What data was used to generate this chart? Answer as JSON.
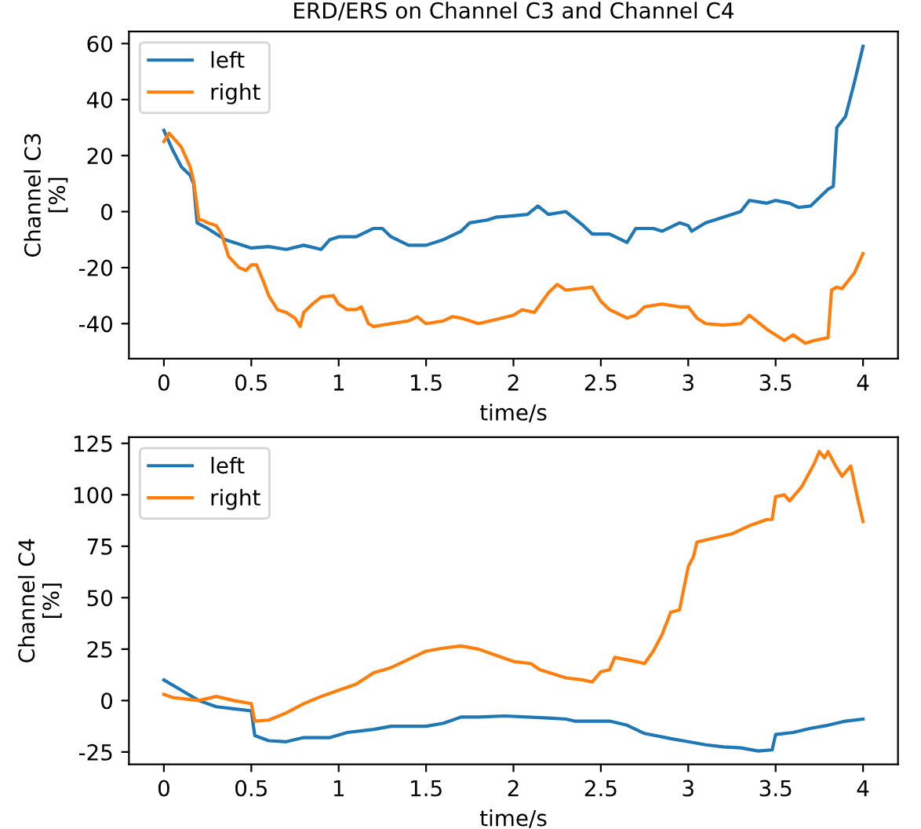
{
  "chart_data": [
    {
      "type": "line",
      "title": "ERD/ERS on Channel C3 and Channel C4",
      "xlabel": "time/s",
      "ylabel": "Channel C3\n[%]",
      "xlim": [
        -0.2,
        4.2
      ],
      "ylim": [
        -52.5,
        64.3
      ],
      "xticks": [
        0,
        0.5,
        1,
        1.5,
        2,
        2.5,
        3,
        3.5,
        4
      ],
      "yticks": [
        -40,
        -20,
        0,
        20,
        40,
        60
      ],
      "legend": "top left",
      "grid": false,
      "series": [
        {
          "name": "left",
          "color": "#1f77b4",
          "x": [
            0,
            0.05,
            0.1,
            0.15,
            0.17,
            0.19,
            0.25,
            0.35,
            0.5,
            0.6,
            0.7,
            0.8,
            0.9,
            0.95,
            1.0,
            1.1,
            1.2,
            1.25,
            1.3,
            1.4,
            1.5,
            1.6,
            1.7,
            1.75,
            1.85,
            1.9,
            2.0,
            2.08,
            2.14,
            2.2,
            2.3,
            2.4,
            2.45,
            2.55,
            2.65,
            2.7,
            2.8,
            2.85,
            2.95,
            3.0,
            3.02,
            3.1,
            3.2,
            3.3,
            3.35,
            3.45,
            3.5,
            3.58,
            3.63,
            3.7,
            3.75,
            3.8,
            3.83,
            3.85,
            3.9,
            3.95,
            4.0
          ],
          "values": [
            29,
            22,
            16,
            13,
            10,
            -4,
            -6,
            -10,
            -13,
            -12.5,
            -13.5,
            -12,
            -13.5,
            -10,
            -9,
            -9,
            -6,
            -6,
            -9,
            -12,
            -12,
            -10,
            -7,
            -4,
            -3,
            -2,
            -1.5,
            -1,
            2,
            -1,
            0,
            -5,
            -8,
            -8,
            -11,
            -6,
            -6,
            -7,
            -4,
            -5,
            -7,
            -4,
            -2,
            0,
            4,
            3,
            4,
            3,
            1.5,
            2,
            5,
            8,
            9,
            30,
            34,
            46,
            59
          ]
        },
        {
          "name": "right",
          "color": "#ff7f0e",
          "x": [
            0,
            0.03,
            0.1,
            0.15,
            0.17,
            0.2,
            0.22,
            0.25,
            0.3,
            0.33,
            0.37,
            0.43,
            0.47,
            0.5,
            0.53,
            0.57,
            0.6,
            0.65,
            0.7,
            0.75,
            0.78,
            0.8,
            0.85,
            0.9,
            0.97,
            1.0,
            1.05,
            1.1,
            1.13,
            1.17,
            1.2,
            1.3,
            1.4,
            1.45,
            1.5,
            1.6,
            1.65,
            1.7,
            1.8,
            1.9,
            2.0,
            2.05,
            2.12,
            2.2,
            2.25,
            2.3,
            2.45,
            2.5,
            2.55,
            2.65,
            2.7,
            2.75,
            2.85,
            2.95,
            3.0,
            3.05,
            3.1,
            3.2,
            3.3,
            3.35,
            3.45,
            3.55,
            3.6,
            3.67,
            3.72,
            3.8,
            3.82,
            3.85,
            3.88,
            3.95,
            4.0
          ],
          "values": [
            25,
            28,
            23,
            16,
            11,
            -3,
            -3,
            -4,
            -5,
            -8,
            -16,
            -20,
            -21,
            -19,
            -19,
            -25,
            -30,
            -35,
            -36,
            -38,
            -41,
            -36,
            -33,
            -30.5,
            -30,
            -33,
            -35,
            -35,
            -34,
            -40,
            -41,
            -40,
            -39,
            -37.5,
            -40,
            -39,
            -37.5,
            -38,
            -40,
            -38.5,
            -37,
            -35,
            -36,
            -29,
            -26,
            -28,
            -27,
            -32,
            -35,
            -38,
            -37,
            -34,
            -33,
            -34,
            -34,
            -38,
            -40,
            -40.5,
            -40,
            -37,
            -42,
            -46,
            -44,
            -47,
            -46,
            -45,
            -28,
            -27,
            -27.5,
            -22,
            -15
          ]
        }
      ]
    },
    {
      "type": "line",
      "xlabel": "time/s",
      "ylabel": "Channel C4\n[%]",
      "xlim": [
        -0.2,
        4.2
      ],
      "ylim": [
        -31,
        128
      ],
      "xticks": [
        0,
        0.5,
        1,
        1.5,
        2,
        2.5,
        3,
        3.5,
        4
      ],
      "yticks": [
        -25,
        0,
        25,
        50,
        75,
        100,
        125
      ],
      "legend": "top left",
      "grid": false,
      "series": [
        {
          "name": "left",
          "color": "#1f77b4",
          "x": [
            0,
            0.1,
            0.2,
            0.3,
            0.4,
            0.5,
            0.52,
            0.6,
            0.7,
            0.8,
            0.95,
            1.05,
            1.2,
            1.3,
            1.5,
            1.6,
            1.7,
            1.8,
            1.95,
            2.2,
            2.3,
            2.35,
            2.55,
            2.65,
            2.75,
            2.9,
            3.0,
            3.1,
            3.2,
            3.3,
            3.4,
            3.48,
            3.5,
            3.6,
            3.7,
            3.8,
            3.9,
            4.0
          ],
          "values": [
            10,
            5,
            0,
            -3,
            -4,
            -5,
            -17,
            -19.5,
            -20,
            -18,
            -18,
            -15.5,
            -14,
            -12.5,
            -12.5,
            -11,
            -8,
            -8,
            -7.5,
            -8.5,
            -9,
            -10,
            -10,
            -12,
            -16,
            -18.5,
            -20,
            -21.5,
            -22.5,
            -23,
            -24.5,
            -24,
            -16.5,
            -15.5,
            -13.5,
            -12,
            -10,
            -9
          ]
        },
        {
          "name": "right",
          "color": "#ff7f0e",
          "x": [
            0,
            0.05,
            0.15,
            0.2,
            0.3,
            0.4,
            0.5,
            0.52,
            0.6,
            0.7,
            0.8,
            0.9,
            1.0,
            1.1,
            1.2,
            1.3,
            1.4,
            1.5,
            1.6,
            1.7,
            1.8,
            1.9,
            2.0,
            2.1,
            2.15,
            2.3,
            2.4,
            2.45,
            2.5,
            2.55,
            2.58,
            2.7,
            2.75,
            2.8,
            2.85,
            2.9,
            2.95,
            3.0,
            3.03,
            3.05,
            3.15,
            3.25,
            3.35,
            3.45,
            3.48,
            3.5,
            3.55,
            3.58,
            3.65,
            3.72,
            3.75,
            3.78,
            3.8,
            3.85,
            3.88,
            3.93,
            3.97,
            4.0
          ],
          "values": [
            3,
            1.5,
            0.5,
            0,
            2,
            0,
            -1.5,
            -10,
            -9.5,
            -6,
            -1.5,
            2,
            5,
            8,
            13.5,
            16,
            20,
            24,
            25.5,
            26.5,
            25,
            22,
            19,
            18,
            15,
            11,
            10,
            9,
            14,
            15,
            21,
            19,
            18,
            24,
            32,
            43,
            44,
            65,
            70,
            77,
            79,
            81,
            85,
            88,
            88,
            99,
            100,
            97,
            104,
            115,
            121,
            118,
            121,
            113,
            109,
            114,
            98,
            87
          ]
        }
      ]
    }
  ]
}
